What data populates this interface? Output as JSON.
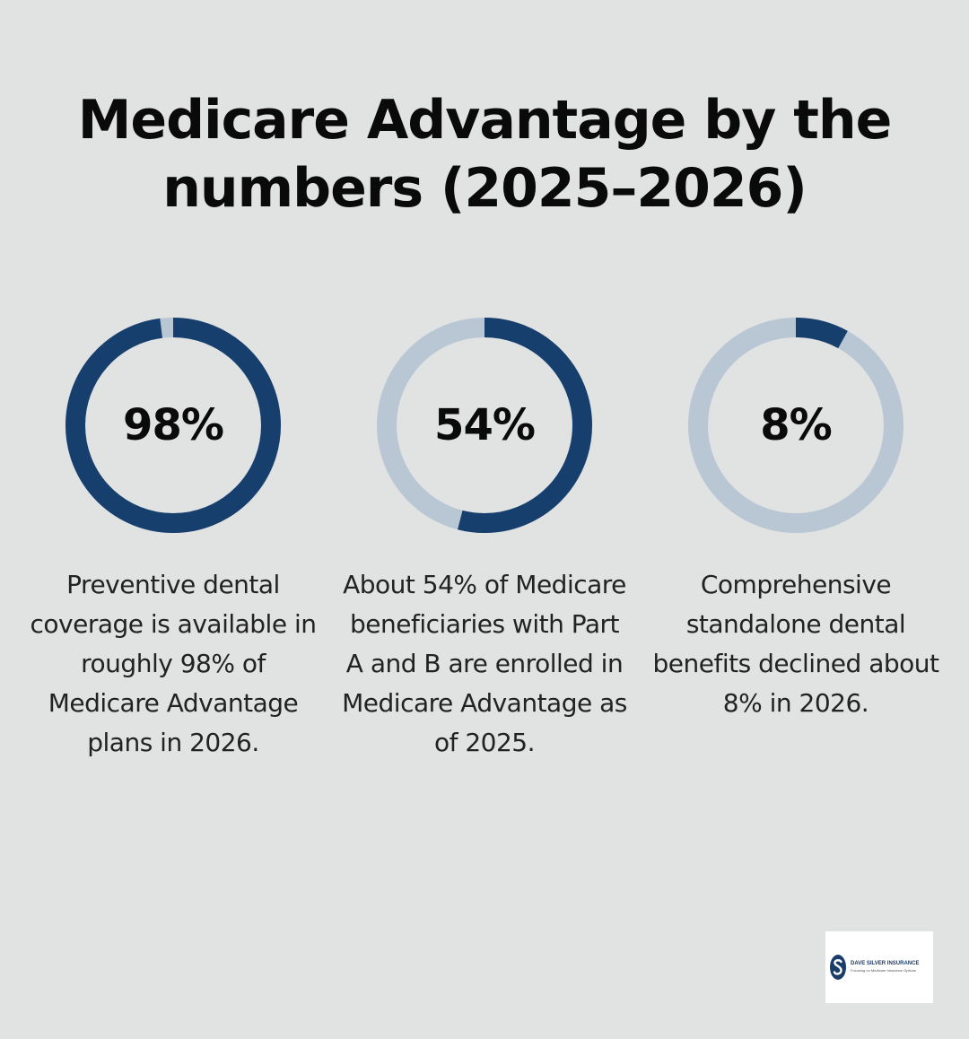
{
  "title": "Medicare Advantage by the numbers (2025–2026)",
  "colors": {
    "background": "#e1e2e2",
    "ring_fill": "#173f6d",
    "ring_track": "#b9c7d5"
  },
  "stats": [
    {
      "value_label": "98%",
      "percent": 98,
      "description": "Preventive dental coverage is available in roughly 98% of Medicare Advantage plans in 2026."
    },
    {
      "value_label": "54%",
      "percent": 54,
      "description": "About 54% of Medicare beneficiaries with Part A and B are enrolled in Medicare Advantage as of 2025."
    },
    {
      "value_label": "8%",
      "percent": 8,
      "description": "Comprehensive standalone dental benefits declined about 8% in 2026."
    }
  ],
  "logo": {
    "name": "DAVE SILVER INSURANCE",
    "tagline": "Focusing on Medicare Insurance Options"
  }
}
